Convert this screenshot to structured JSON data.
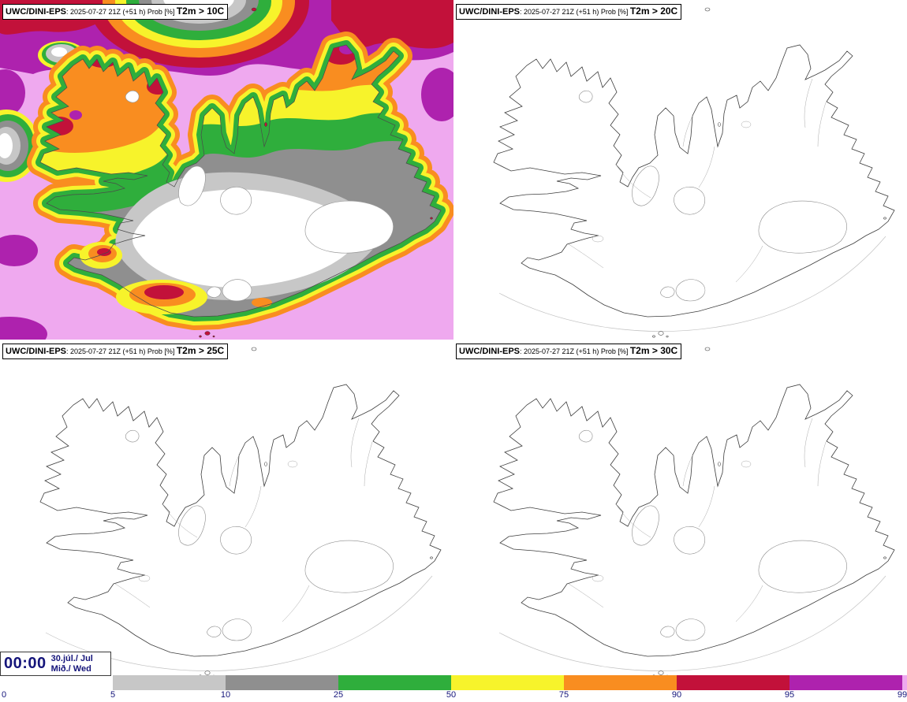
{
  "panels": [
    {
      "model": "UWC/DINI-EPS",
      "run": ": 2025-07-27 21Z (+51 h) Prob [%] ",
      "threshold": "T2m > 10C"
    },
    {
      "model": "UWC/DINI-EPS",
      "run": ": 2025-07-27 21Z (+51 h) Prob [%] ",
      "threshold": "T2m > 20C"
    },
    {
      "model": "UWC/DINI-EPS",
      "run": ": 2025-07-27 21Z (+51 h) Prob [%] ",
      "threshold": "T2m > 25C"
    },
    {
      "model": "UWC/DINI-EPS",
      "run": ": 2025-07-27 21Z (+51 h) Prob [%] ",
      "threshold": "T2m > 30C"
    }
  ],
  "valid_time": {
    "time": "00:00",
    "date": "30.júl./ Jul",
    "weekday": "Mið./ Wed"
  },
  "colorbar": {
    "tick_labels": [
      "0",
      "5",
      "10",
      "25",
      "50",
      "75",
      "90",
      "95",
      "99"
    ],
    "segments": [
      {
        "range": "5-10",
        "color_key": "p5"
      },
      {
        "range": "10-25",
        "color_key": "p10"
      },
      {
        "range": "25-50",
        "color_key": "p25"
      },
      {
        "range": "50-75",
        "color_key": "p50"
      },
      {
        "range": "75-90",
        "color_key": "p75"
      },
      {
        "range": "90-95",
        "color_key": "p90"
      },
      {
        "range": "95-99",
        "color_key": "p95"
      },
      {
        "range": "99-100",
        "color_key": "p99"
      }
    ]
  },
  "palette": {
    "p0": "#ffffff",
    "p5": "#c7c7c7",
    "p10": "#8f8f8f",
    "p25": "#2fae3c",
    "p50": "#f7f32b",
    "p75": "#f98d20",
    "p90": "#c2113a",
    "p95": "#ae22ae",
    "p99": "#efa9ef",
    "text_navy": "#14147a"
  }
}
